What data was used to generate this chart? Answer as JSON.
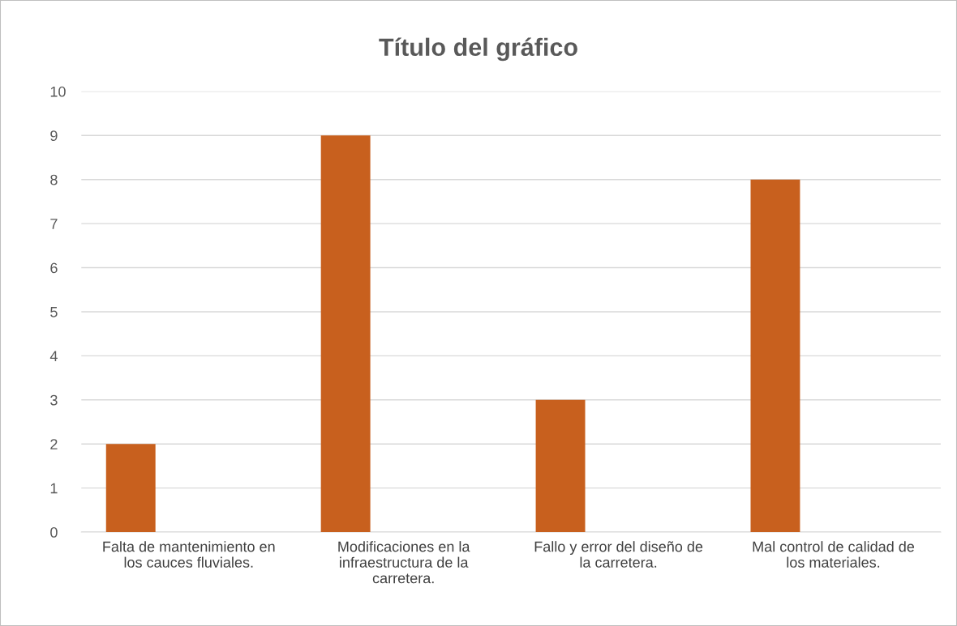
{
  "chart_data": {
    "type": "bar",
    "title": "Título del gráfico",
    "categories": [
      "Falta de mantenimiento en los cauces fluviales.",
      "Modificaciones en la infraestructura de la carretera.",
      "Fallo y error del diseño de la carretera.",
      "Mal control de calidad de los materiales."
    ],
    "series": [
      {
        "color": "#c8601e",
        "values": [
          2,
          9,
          3,
          8
        ]
      }
    ],
    "ylim": [
      0,
      10
    ],
    "yticks": [
      0,
      1,
      2,
      3,
      4,
      5,
      6,
      7,
      8,
      9,
      10
    ],
    "grid": "y",
    "legend": false
  }
}
